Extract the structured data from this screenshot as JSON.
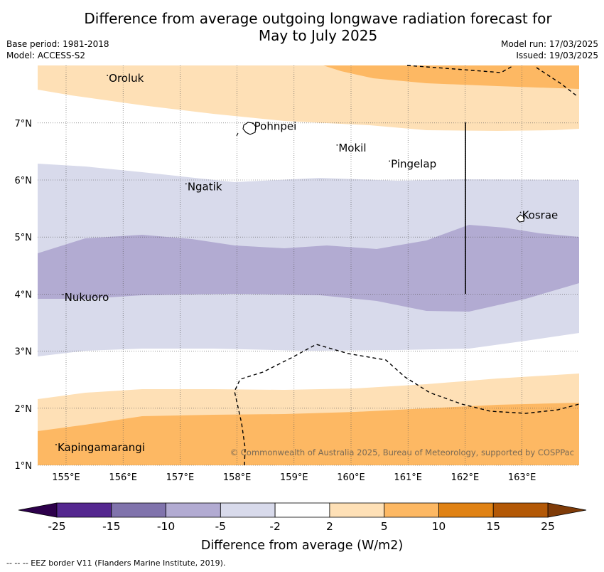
{
  "title_line1": "Difference from average outgoing longwave radiation forecast for",
  "title_line2": "May to July 2025",
  "base_period": "Base period: 1981-2018",
  "model": "Model: ACCESS-S2",
  "model_run": "Model run: 17/03/2025",
  "issued": "Issued: 19/03/2025",
  "copyright": "© Commonwealth of Australia 2025, Bureau of Meteorology, supported by COSPPac",
  "footer": "-- -- -- EEZ border V11 (Flanders Marine Institute, 2019).",
  "map": {
    "lon_range": [
      154.5,
      164.0
    ],
    "lat_range": [
      1.0,
      8.0
    ],
    "lon_ticks": [
      155,
      156,
      157,
      158,
      159,
      160,
      161,
      162,
      163
    ],
    "lon_tick_labels": [
      "155°E",
      "156°E",
      "157°E",
      "158°E",
      "159°E",
      "160°E",
      "161°E",
      "162°E",
      "163°E"
    ],
    "lat_ticks": [
      1,
      2,
      3,
      4,
      5,
      6,
      7
    ],
    "lat_tick_labels": [
      "1°N",
      "2°N",
      "3°N",
      "4°N",
      "5°N",
      "6°N",
      "7°N"
    ],
    "grid": true,
    "places": [
      {
        "name": "Oroluk",
        "lon": 155.75,
        "lat": 7.72
      },
      {
        "name": "Pohnpei",
        "lon": 158.3,
        "lat": 6.88
      },
      {
        "name": "Mokil",
        "lon": 159.78,
        "lat": 6.5
      },
      {
        "name": "Pingelap",
        "lon": 160.7,
        "lat": 6.22
      },
      {
        "name": "Ngatik",
        "lon": 157.13,
        "lat": 5.82
      },
      {
        "name": "Kosrae",
        "lon": 163.0,
        "lat": 5.32
      },
      {
        "name": "Nukuoro",
        "lon": 154.97,
        "lat": 3.88
      },
      {
        "name": "Kapingamarangi",
        "lon": 154.85,
        "lat": 1.25
      }
    ]
  },
  "colorbar": {
    "label": "Difference from average (W/m2)",
    "tick_labels": [
      "-25",
      "-15",
      "-10",
      "-5",
      "-2",
      "2",
      "5",
      "10",
      "15",
      "25"
    ],
    "colors": [
      "#54278f",
      "#8073ac",
      "#b2abd2",
      "#d8daeb",
      "#ffffff",
      "#fee0b6",
      "#fdb863",
      "#e08214",
      "#b35806"
    ],
    "under_color": "#2d004b",
    "over_color": "#7f3b08"
  }
}
